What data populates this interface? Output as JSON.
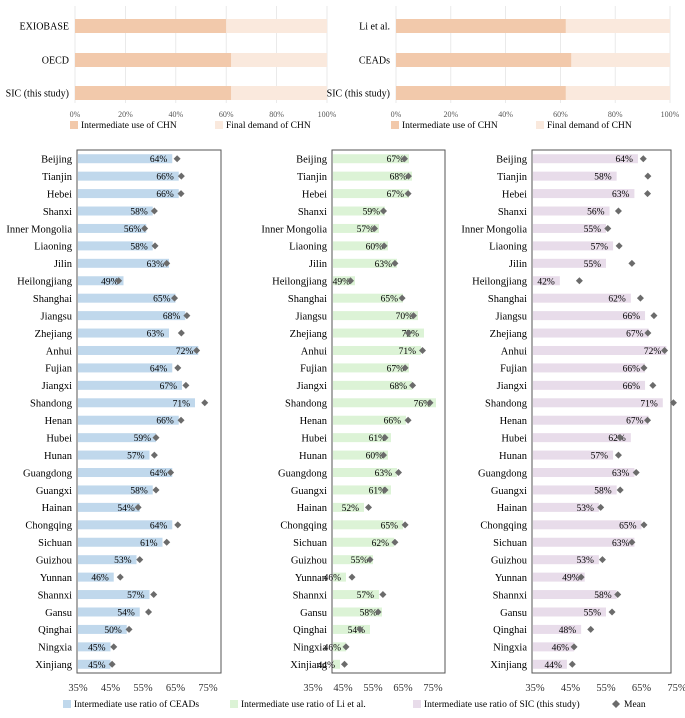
{
  "chart_data": [
    {
      "type": "bar",
      "stacked": true,
      "orientation": "horizontal",
      "title": "",
      "categories": [
        "EXIOBASE",
        "OECD",
        "SIC (this study)"
      ],
      "series": [
        {
          "name": "Intermediate use of CHN",
          "values": [
            60,
            62,
            62
          ]
        },
        {
          "name": "Final demand of CHN",
          "values": [
            40,
            38,
            38
          ]
        }
      ],
      "xlim": [
        0,
        100
      ],
      "tick_labels": [
        "0%",
        "20%",
        "40%",
        "60%",
        "80%",
        "100%"
      ],
      "legend": [
        "Intermediate use of CHN",
        "Final demand of CHN"
      ],
      "legend_position": "bottom"
    },
    {
      "type": "bar",
      "stacked": true,
      "orientation": "horizontal",
      "title": "",
      "categories": [
        "Li et al.",
        "CEADs",
        "SIC (this study)"
      ],
      "series": [
        {
          "name": "Intermediate use of CHN",
          "values": [
            62,
            64,
            62
          ]
        },
        {
          "name": "Final demand of CHN",
          "values": [
            38,
            36,
            38
          ]
        }
      ],
      "xlim": [
        0,
        100
      ],
      "tick_labels": [
        "0%",
        "20%",
        "40%",
        "60%",
        "80%",
        "100%"
      ],
      "legend": [
        "Intermediate use of CHN",
        "Final demand of CHN"
      ],
      "legend_position": "bottom"
    },
    {
      "type": "bar",
      "orientation": "horizontal",
      "title": "Intermediate use ratio of CEADs",
      "categories": [
        "Beijing",
        "Tianjin",
        "Hebei",
        "Shanxi",
        "Inner Mongolia",
        "Liaoning",
        "Jilin",
        "Heilongjiang",
        "Shanghai",
        "Jiangsu",
        "Zhejiang",
        "Anhui",
        "Fujian",
        "Jiangxi",
        "Shandong",
        "Henan",
        "Hubei",
        "Hunan",
        "Guangdong",
        "Guangxi",
        "Hainan",
        "Chongqing",
        "Sichuan",
        "Guizhou",
        "Yunnan",
        "Shannxi",
        "Gansu",
        "Qinghai",
        "Ningxia",
        "Xinjiang"
      ],
      "values": [
        64,
        66,
        66,
        58,
        56,
        58,
        63,
        49,
        65,
        68,
        63,
        72,
        64,
        67,
        71,
        66,
        59,
        57,
        64,
        58,
        54,
        64,
        61,
        53,
        46,
        57,
        54,
        50,
        45,
        45
      ],
      "labels": [
        "64%",
        "66%",
        "66%",
        "58%",
        "56%",
        "58%",
        "63%",
        "49%",
        "65%",
        "68%",
        "63%",
        "72%",
        "64%",
        "67%",
        "71%",
        "66%",
        "59%",
        "57%",
        "64%",
        "58%",
        "54%",
        "64%",
        "61%",
        "53%",
        "46%",
        "57%",
        "54%",
        "50%",
        "45%",
        "45%"
      ],
      "mean": [
        65.5,
        66.8,
        66.7,
        58.5,
        55.5,
        58.7,
        62.3,
        47.5,
        64.7,
        68.5,
        66.8,
        71.5,
        65.7,
        68.2,
        74,
        66.7,
        59,
        58.5,
        63.5,
        59,
        53.5,
        65.7,
        62.3,
        54,
        48,
        58.3,
        56.7,
        50.7,
        46,
        45.5
      ],
      "xlim": [
        35,
        75
      ],
      "tick_labels": [
        "35%",
        "45%",
        "55%",
        "65%",
        "75%"
      ],
      "legend": [
        "Intermediate use ratio of CEADs",
        "Mean"
      ],
      "legend_position": "bottom",
      "colors": {
        "bar": "#c0d8ec",
        "mean": "#6b6b6b"
      }
    },
    {
      "type": "bar",
      "orientation": "horizontal",
      "title": "Intermediate use ratio of Li et al.",
      "categories": [
        "Beijing",
        "Tianjin",
        "Hebei",
        "Shanxi",
        "Inner Mongolia",
        "Liaoning",
        "Jilin",
        "Heilongjiang",
        "Shanghai",
        "Jiangsu",
        "Zhejiang",
        "Anhui",
        "Fujian",
        "Jiangxi",
        "Shandong",
        "Henan",
        "Hubei",
        "Hunan",
        "Guangdong",
        "Guangxi",
        "Hainan",
        "Chongqing",
        "Sichuan",
        "Guizhou",
        "Yunnan",
        "Shannxi",
        "Gansu",
        "Qinghai",
        "Ningxia",
        "Xinjiang"
      ],
      "values": [
        67,
        68,
        67,
        59,
        57,
        60,
        63,
        49,
        65,
        70,
        72,
        71,
        67,
        68,
        76,
        66,
        61,
        60,
        63,
        61,
        52,
        65,
        62,
        55,
        46,
        57,
        58,
        54,
        46,
        44
      ],
      "labels": [
        "67%",
        "68%",
        "67%",
        "59%",
        "57%",
        "60%",
        "63%",
        "49%",
        "65%",
        "70%",
        "72%",
        "71%",
        "67%",
        "68%",
        "76%",
        "66%",
        "61%",
        "60%",
        "63%",
        "61%",
        "52%",
        "65%",
        "62%",
        "55%",
        "46%",
        "57%",
        "58%",
        "54%",
        "46%",
        "44%"
      ],
      "mean": [
        65.5,
        66.8,
        66.7,
        58.5,
        55.5,
        58.7,
        62.3,
        47.5,
        64.7,
        68.5,
        66.8,
        71.5,
        65.7,
        68.2,
        74,
        66.7,
        59,
        58.5,
        63.5,
        59,
        53.5,
        65.7,
        62.3,
        54,
        48,
        58.3,
        56.7,
        50.7,
        46,
        45.5
      ],
      "xlim": [
        35,
        75
      ],
      "tick_labels": [
        "35%",
        "45%",
        "55%",
        "65%",
        "75%"
      ],
      "legend": [
        "Intermediate use ratio of Li et al."
      ],
      "legend_position": "bottom",
      "colors": {
        "bar": "#dcf3d6",
        "mean": "#6b6b6b"
      }
    },
    {
      "type": "bar",
      "orientation": "horizontal",
      "title": "Intermediate use ratio of SIC (this study)",
      "categories": [
        "Beijing",
        "Tianjin",
        "Hebei",
        "Shanxi",
        "Inner Mongolia",
        "Liaoning",
        "Jilin",
        "Heilongjiang",
        "Shanghai",
        "Jiangsu",
        "Zhejiang",
        "Anhui",
        "Fujian",
        "Jiangxi",
        "Shandong",
        "Henan",
        "Hubei",
        "Hunan",
        "Guangdong",
        "Guangxi",
        "Hainan",
        "Chongqing",
        "Sichuan",
        "Guizhou",
        "Yunnan",
        "Shannxi",
        "Gansu",
        "Qinghai",
        "Ningxia",
        "Xinjiang"
      ],
      "values": [
        64,
        58,
        63,
        56,
        55,
        57,
        55,
        42,
        62,
        66,
        67,
        72,
        66,
        66,
        71,
        67,
        62,
        57,
        63,
        58,
        53,
        65,
        63,
        53,
        49,
        58,
        55,
        48,
        46,
        44
      ],
      "labels": [
        "64%",
        "58%",
        "63%",
        "56%",
        "55%",
        "57%",
        "55%",
        "42%",
        "62%",
        "66%",
        "67%",
        "72%",
        "66%",
        "66%",
        "71%",
        "67%",
        "62%",
        "57%",
        "63%",
        "58%",
        "53%",
        "65%",
        "63%",
        "53%",
        "49%",
        "58%",
        "55%",
        "48%",
        "46%",
        "44%"
      ],
      "mean": [
        65.5,
        66.8,
        66.7,
        58.5,
        55.5,
        58.7,
        62.3,
        47.5,
        64.7,
        68.5,
        66.8,
        71.5,
        65.7,
        68.2,
        74,
        66.7,
        59,
        58.5,
        63.5,
        59,
        53.5,
        65.7,
        62.3,
        54,
        48,
        58.3,
        56.7,
        50.7,
        46,
        45.5
      ],
      "xlim": [
        35,
        75
      ],
      "tick_labels": [
        "35%",
        "45%",
        "55%",
        "65%",
        "75%"
      ],
      "legend": [
        "Intermediate use ratio of SIC (this study)"
      ],
      "legend_position": "bottom",
      "colors": {
        "bar": "#e8dcea",
        "mean": "#6b6b6b"
      }
    }
  ],
  "colors": {
    "intermediate": "#f2c9ab",
    "final": "#fae9dd"
  }
}
